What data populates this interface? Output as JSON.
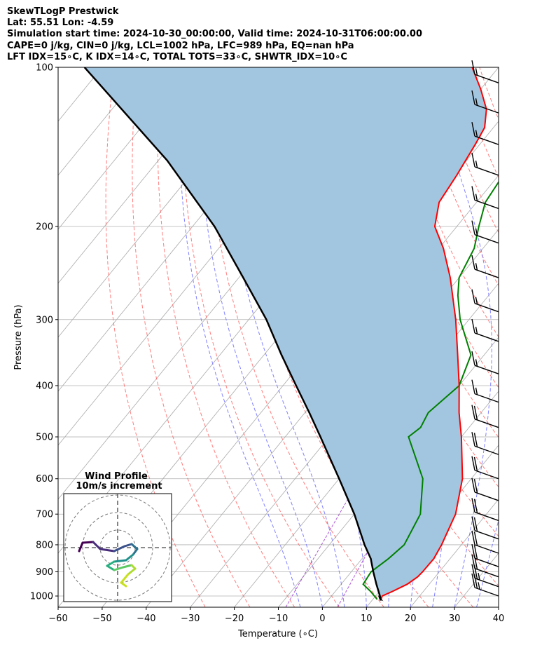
{
  "header": {
    "line1": "SkewTLogP Prestwick",
    "line2": "Lat: 55.51   Lon: -4.59",
    "line3": "Simulation start time: 2024-10-30_00:00:00, Valid time: 2024-10-31T06:00:00.00",
    "line4": "CAPE=0 j/kg, CIN=0 j/kg, LCL=1002 hPa, LFC=989 hPa, EQ=nan hPa",
    "line5": "LFT IDX=15∘C, K IDX=14∘C, TOTAL TOTS=33∘C, SHWTR_IDX=10∘C"
  },
  "colors": {
    "temperature": "#ff0000",
    "dewpoint": "#008000",
    "parcel": "#000000",
    "shade": "#a3c6e0",
    "dry_adiabats": "#ff6666",
    "moist_adiabats": "#6b6bff",
    "mixing_ratio": "#9933cc",
    "isotherms": "#aaaaaa"
  },
  "chart_data": {
    "type": "line",
    "subtype": "skew-T log-P",
    "xlabel": "Temperature (∘C)",
    "ylabel": "Pressure (hPa)",
    "xlim": [
      -60,
      40
    ],
    "ylim": [
      1050,
      100
    ],
    "yscale": "log",
    "xticks": [
      -60,
      -50,
      -40,
      -30,
      -20,
      -10,
      0,
      10,
      20,
      30,
      40
    ],
    "yticks": [
      100,
      200,
      300,
      400,
      500,
      600,
      700,
      800,
      900,
      1000
    ],
    "grid": true,
    "series": [
      {
        "key": "temperature",
        "points": [
          [
            1020,
            12
          ],
          [
            1000,
            11.5
          ],
          [
            980,
            13
          ],
          [
            950,
            15
          ],
          [
            920,
            16
          ],
          [
            900,
            16.2
          ],
          [
            850,
            16.3
          ],
          [
            800,
            15.5
          ],
          [
            700,
            13
          ],
          [
            600,
            8
          ],
          [
            500,
            0
          ],
          [
            450,
            -5
          ],
          [
            400,
            -10
          ],
          [
            350,
            -16
          ],
          [
            300,
            -23
          ],
          [
            250,
            -32
          ],
          [
            220,
            -39
          ],
          [
            200,
            -45
          ],
          [
            180,
            -48.5
          ],
          [
            160,
            -49.5
          ],
          [
            140,
            -51
          ],
          [
            130,
            -52
          ],
          [
            120,
            -55
          ],
          [
            110,
            -60
          ],
          [
            100,
            -66
          ]
        ]
      },
      {
        "key": "dewpoint",
        "points": [
          [
            1015,
            11
          ],
          [
            980,
            8
          ],
          [
            950,
            5
          ],
          [
            900,
            4.5
          ],
          [
            850,
            6
          ],
          [
            800,
            7
          ],
          [
            700,
            5
          ],
          [
            600,
            -1
          ],
          [
            500,
            -12
          ],
          [
            480,
            -11
          ],
          [
            450,
            -12
          ],
          [
            400,
            -10
          ],
          [
            350,
            -13
          ],
          [
            300,
            -22
          ],
          [
            270,
            -27
          ],
          [
            250,
            -30
          ],
          [
            220,
            -32
          ],
          [
            200,
            -35
          ],
          [
            180,
            -38
          ],
          [
            160,
            -39
          ],
          [
            145,
            -40
          ],
          [
            130,
            -42
          ],
          [
            120,
            -45
          ],
          [
            110,
            -48
          ],
          [
            100,
            -51
          ]
        ]
      },
      {
        "key": "parcel",
        "points": [
          [
            1020,
            12
          ],
          [
            1000,
            11
          ],
          [
            950,
            8
          ],
          [
            900,
            5
          ],
          [
            850,
            2
          ],
          [
            800,
            -2
          ],
          [
            700,
            -10
          ],
          [
            600,
            -20
          ],
          [
            500,
            -32
          ],
          [
            450,
            -39
          ],
          [
            400,
            -47
          ],
          [
            350,
            -56
          ],
          [
            300,
            -66
          ],
          [
            250,
            -79
          ],
          [
            200,
            -95
          ],
          [
            150,
            -118
          ],
          [
            100,
            -154
          ]
        ]
      }
    ],
    "wind_barbs": [
      {
        "p": 1000,
        "barbs": 2.5
      },
      {
        "p": 960,
        "barbs": 2.5
      },
      {
        "p": 920,
        "barbs": 2
      },
      {
        "p": 880,
        "barbs": 2
      },
      {
        "p": 830,
        "barbs": 2
      },
      {
        "p": 780,
        "barbs": 2
      },
      {
        "p": 720,
        "barbs": 2
      },
      {
        "p": 660,
        "barbs": 2
      },
      {
        "p": 600,
        "barbs": 2
      },
      {
        "p": 540,
        "barbs": 2
      },
      {
        "p": 480,
        "barbs": 2
      },
      {
        "p": 430,
        "barbs": 1.5
      },
      {
        "p": 380,
        "barbs": 1.5
      },
      {
        "p": 330,
        "barbs": 1.5
      },
      {
        "p": 290,
        "barbs": 1.5
      },
      {
        "p": 250,
        "barbs": 1.5
      },
      {
        "p": 215,
        "barbs": 1.5
      },
      {
        "p": 185,
        "barbs": 1.5
      },
      {
        "p": 160,
        "barbs": 1.5
      },
      {
        "p": 140,
        "barbs": 1.5
      },
      {
        "p": 122,
        "barbs": 1.5
      },
      {
        "p": 107,
        "barbs": 1.5
      }
    ],
    "inset": {
      "title1": "Wind Profile",
      "title2": "10m/s increment",
      "hodograph": [
        [
          -0.55,
          -0.05
        ],
        [
          -0.5,
          0.07
        ],
        [
          -0.35,
          0.08
        ],
        [
          -0.25,
          -0.02
        ],
        [
          -0.05,
          -0.05
        ],
        [
          0.1,
          0.02
        ],
        [
          0.2,
          0.05
        ],
        [
          0.28,
          -0.02
        ],
        [
          0.22,
          -0.1
        ],
        [
          0.12,
          -0.18
        ],
        [
          -0.05,
          -0.2
        ],
        [
          -0.15,
          -0.26
        ],
        [
          -0.05,
          -0.32
        ],
        [
          0.08,
          -0.28
        ],
        [
          0.2,
          -0.25
        ],
        [
          0.25,
          -0.3
        ],
        [
          0.15,
          -0.38
        ],
        [
          0.05,
          -0.5
        ],
        [
          0.12,
          -0.55
        ]
      ]
    }
  }
}
